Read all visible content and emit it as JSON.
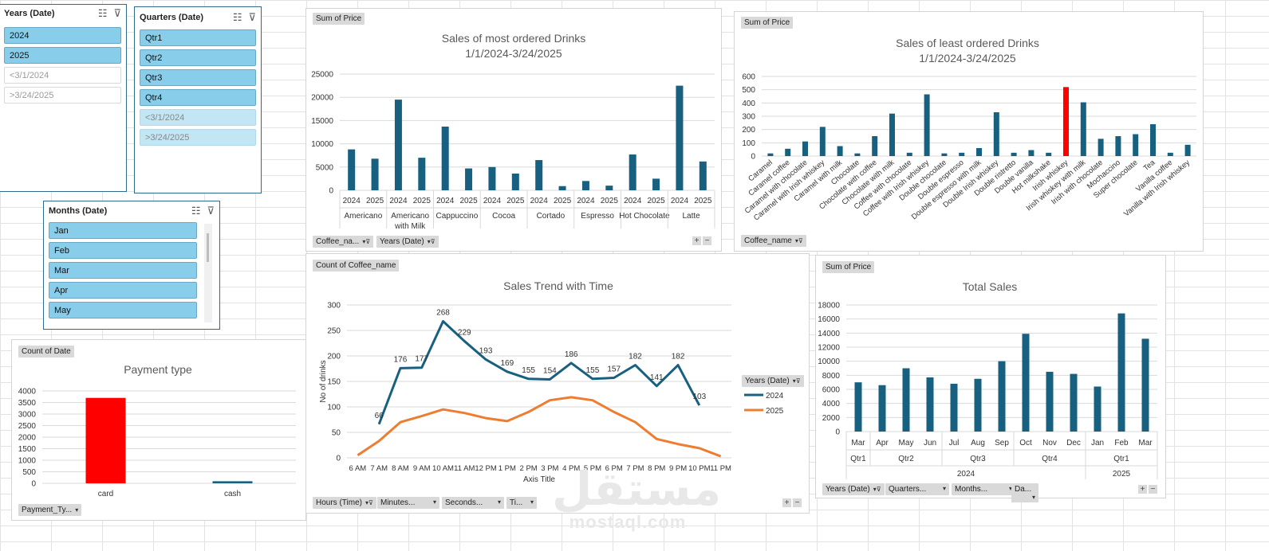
{
  "slicers": {
    "years": {
      "title": "Years (Date)",
      "items": [
        {
          "label": "2024",
          "state": "on"
        },
        {
          "label": "2025",
          "state": "on"
        },
        {
          "label": "<3/1/2024",
          "state": "off"
        },
        {
          "label": ">3/24/2025",
          "state": "off"
        }
      ]
    },
    "quarters": {
      "title": "Quarters (Date)",
      "items": [
        {
          "label": "Qtr1",
          "state": "on"
        },
        {
          "label": "Qtr2",
          "state": "on"
        },
        {
          "label": "Qtr3",
          "state": "on"
        },
        {
          "label": "Qtr4",
          "state": "on"
        },
        {
          "label": "<3/1/2024",
          "state": "faint"
        },
        {
          "label": ">3/24/2025",
          "state": "faint"
        }
      ]
    },
    "months": {
      "title": "Months (Date)",
      "items": [
        {
          "label": "Jan",
          "state": "on"
        },
        {
          "label": "Feb",
          "state": "on"
        },
        {
          "label": "Mar",
          "state": "on"
        },
        {
          "label": "Apr",
          "state": "on"
        },
        {
          "label": "May",
          "state": "on"
        }
      ]
    }
  },
  "icons": {
    "multiselect": "multi-select-icon",
    "clear_filter": "clear-filter-icon",
    "dropdown": "dropdown-arrow-icon",
    "filter": "filter-icon"
  },
  "panels": {
    "most": {
      "value_button": "Sum of Price",
      "field_buttons": [
        "Coffee_na...",
        "Years (Date)"
      ]
    },
    "least": {
      "value_button": "Sum of Price",
      "field_buttons": [
        "Coffee_name"
      ]
    },
    "trend": {
      "value_button": "Count of Coffee_name",
      "field_buttons": [
        "Hours (Time)",
        "Minutes...",
        "Seconds...",
        "Ti..."
      ],
      "legend_title": "Years (Date)"
    },
    "total": {
      "value_button": "Sum of Price",
      "field_buttons": [
        "Years (Date)",
        "Quarters...",
        "Months...",
        "Da..."
      ]
    },
    "payment": {
      "value_button": "Count of Date",
      "field_buttons": [
        "Payment_Ty..."
      ]
    }
  },
  "zoom": {
    "plus": "+",
    "minus": "−"
  },
  "watermark": {
    "arabic": "مستقل",
    "latin": "mostaql.com"
  },
  "colors": {
    "bar": "#17607f",
    "highlight": "#ff0000",
    "line2025": "#ed7d31",
    "grid": "#d9d9d9",
    "axis_text": "#595959",
    "title": "#595959"
  },
  "chart_data": [
    {
      "id": "most",
      "type": "bar",
      "title": "Sales of most ordered Drinks",
      "subtitle": "1/1/2024-3/24/2025",
      "ylim": [
        0,
        25000
      ],
      "yticks": [
        0,
        5000,
        10000,
        15000,
        20000,
        25000
      ],
      "groups": [
        "Americano",
        "Americano with Milk",
        "Cappuccino",
        "Cocoa",
        "Cortado",
        "Espresso",
        "Hot Chocolate",
        "Latte"
      ],
      "group_label_lines": [
        [
          "Americano"
        ],
        [
          "Americano",
          "with Milk"
        ],
        [
          "Cappuccino"
        ],
        [
          "Cocoa"
        ],
        [
          "Cortado"
        ],
        [
          "Espresso"
        ],
        [
          "Hot Chocolate"
        ],
        [
          "Latte"
        ]
      ],
      "subcategories": [
        "2024",
        "2025"
      ],
      "values": [
        [
          8800,
          6800
        ],
        [
          19500,
          7000
        ],
        [
          13700,
          4700
        ],
        [
          5000,
          3600
        ],
        [
          6500,
          900
        ],
        [
          2000,
          1000
        ],
        [
          7700,
          2500
        ],
        [
          22500,
          6200
        ]
      ]
    },
    {
      "id": "least",
      "type": "bar",
      "title": "Sales of least ordered Drinks",
      "subtitle": "1/1/2024-3/24/2025",
      "ylim": [
        0,
        600
      ],
      "yticks": [
        0,
        100,
        200,
        300,
        400,
        500,
        600
      ],
      "categories": [
        "Caramel",
        "Caramel coffee",
        "Caramel with chocolate",
        "Caramel with Irish whiskey",
        "Caramel with milk",
        "Chocolate",
        "Chocolate with coffee",
        "Chocolate with milk",
        "Coffee with chocolate",
        "Coffee with Irish whiskey",
        "Double chocolate",
        "Double espresso",
        "Double espresso with milk",
        "Double Irish whiskey",
        "Double ristretto",
        "Double vanilla",
        "Hot milkshake",
        "Irish whiskey",
        "Irish whiskey with milk",
        "Irish with chocolate",
        "Mochaccino",
        "Super chocolate",
        "Tea",
        "Vanilla coffee",
        "Vanilla with Irish whiskey"
      ],
      "values": [
        20,
        55,
        110,
        220,
        75,
        20,
        150,
        320,
        25,
        465,
        20,
        25,
        60,
        330,
        25,
        45,
        25,
        520,
        405,
        130,
        150,
        165,
        240,
        25,
        85
      ],
      "highlight_index": 17
    },
    {
      "id": "trend",
      "type": "line",
      "title": "Sales Trend with Time",
      "xlabel": "Axis Title",
      "ylabel": "No of drinks",
      "ylim": [
        0,
        300
      ],
      "yticks": [
        0,
        50,
        100,
        150,
        200,
        250,
        300
      ],
      "categories": [
        "6 AM",
        "7 AM",
        "8 AM",
        "9 AM",
        "10 AM",
        "11 AM",
        "12 PM",
        "1 PM",
        "2 PM",
        "3 PM",
        "4 PM",
        "5 PM",
        "6 PM",
        "7 PM",
        "8 PM",
        "9 PM",
        "10 PM",
        "11 PM"
      ],
      "series": [
        {
          "name": "2024",
          "values": [
            null,
            66,
            176,
            177,
            268,
            229,
            193,
            169,
            155,
            154,
            186,
            155,
            157,
            182,
            141,
            182,
            103,
            null
          ],
          "labels": true
        },
        {
          "name": "2025",
          "values": [
            5,
            33,
            70,
            82,
            95,
            88,
            78,
            72,
            90,
            113,
            119,
            113,
            90,
            70,
            37,
            27,
            19,
            3
          ],
          "labels": false
        }
      ]
    },
    {
      "id": "total",
      "type": "bar",
      "title": "Total Sales",
      "ylim": [
        0,
        18000
      ],
      "yticks": [
        0,
        2000,
        4000,
        6000,
        8000,
        10000,
        12000,
        14000,
        16000,
        18000
      ],
      "categories": [
        "Mar",
        "Apr",
        "May",
        "Jun",
        "Jul",
        "Aug",
        "Sep",
        "Oct",
        "Nov",
        "Dec",
        "Jan",
        "Feb",
        "Mar"
      ],
      "values": [
        7000,
        6600,
        9000,
        7700,
        6800,
        7500,
        10000,
        13900,
        8500,
        8200,
        6400,
        16800,
        13200
      ],
      "quarters": [
        {
          "label": "Qtr1",
          "span": 1
        },
        {
          "label": "Qtr2",
          "span": 3
        },
        {
          "label": "Qtr3",
          "span": 3
        },
        {
          "label": "Qtr4",
          "span": 3
        },
        {
          "label": "Qtr1",
          "span": 3
        }
      ],
      "years": [
        {
          "label": "2024",
          "span": 10
        },
        {
          "label": "2025",
          "span": 3
        }
      ]
    },
    {
      "id": "payment",
      "type": "bar",
      "title": "Payment type",
      "ylim": [
        0,
        4000
      ],
      "yticks": [
        0,
        500,
        1000,
        1500,
        2000,
        2500,
        3000,
        3500,
        4000
      ],
      "categories": [
        "card",
        "cash"
      ],
      "values": [
        3700,
        90
      ],
      "highlight_index": 0
    }
  ]
}
